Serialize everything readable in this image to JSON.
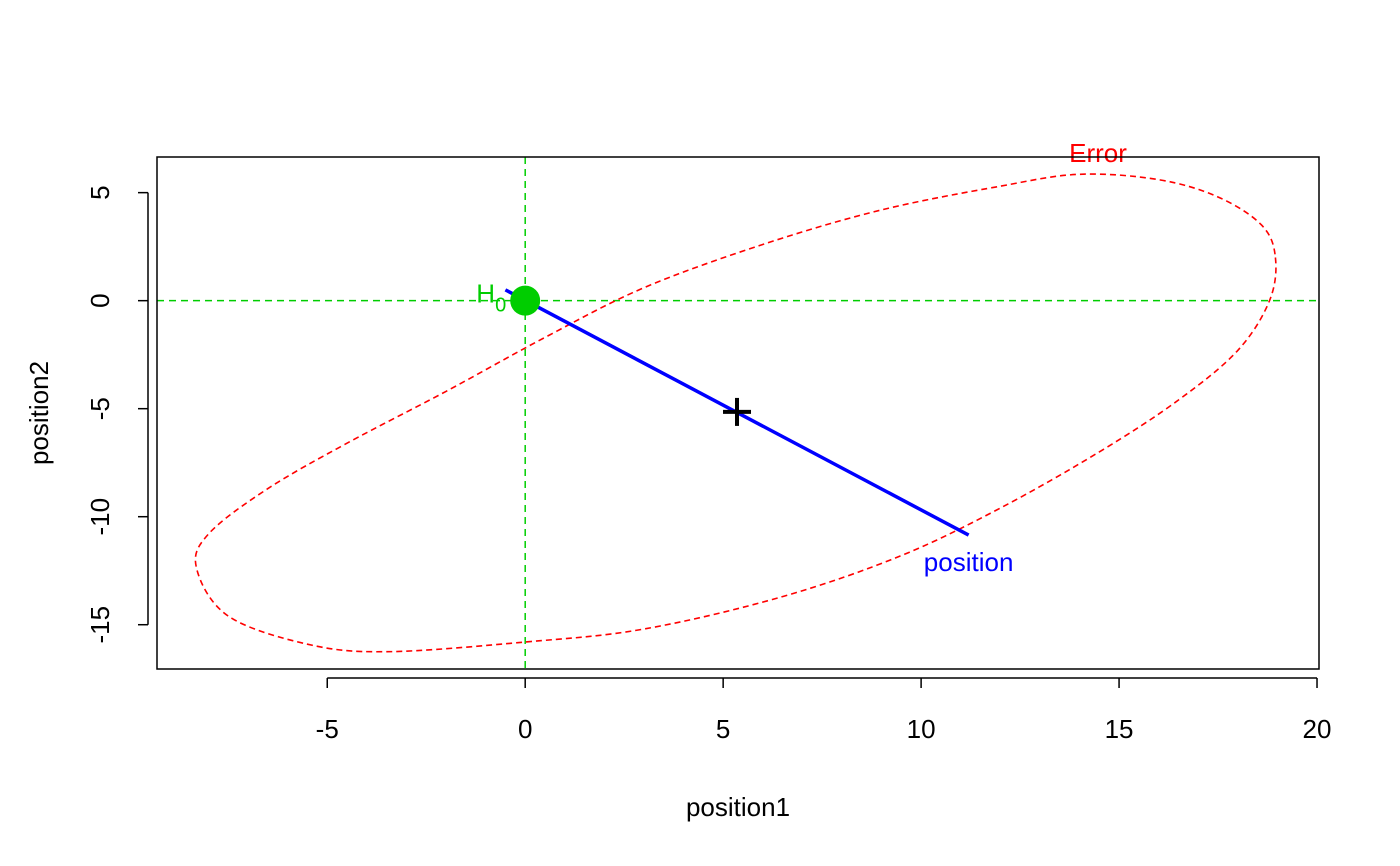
{
  "chart_data": {
    "type": "scatter",
    "xlabel": "position1",
    "ylabel": "position2",
    "xlim": [
      -9.3,
      20.05
    ],
    "ylim": [
      -17.05,
      6.65
    ],
    "x_ticks": [
      -5,
      0,
      5,
      10,
      15,
      20
    ],
    "y_ticks": [
      -15,
      -10,
      -5,
      0,
      5
    ],
    "x_tick_labels": [
      "-5",
      "0",
      "5",
      "10",
      "15",
      "20"
    ],
    "y_tick_labels": [
      "-15",
      "-10",
      "-5",
      "0",
      "5"
    ],
    "grid": false,
    "reference_lines": {
      "x": 0,
      "y": 0,
      "color": "#00CD00",
      "style": "dashed"
    },
    "hypothesis_point": {
      "label": "H",
      "subscript": "0",
      "x": 0,
      "y": 0,
      "color": "#00CD00"
    },
    "center_point": {
      "x": 5.35,
      "y": -5.15,
      "marker": "+",
      "color": "#000000"
    },
    "hypothesis_line": {
      "label": "position",
      "color": "#0000FF",
      "from": [
        -0.5,
        0.5
      ],
      "to": [
        11.2,
        -10.85
      ]
    },
    "error_ellipse": {
      "label": "Error",
      "color": "#FF0000",
      "style": "dashed",
      "center": [
        5.35,
        -5.2
      ],
      "points": [
        [
          18.95,
          2.0
        ],
        [
          18.8,
          0.0
        ],
        [
          18.0,
          -2.3
        ],
        [
          16.5,
          -4.6
        ],
        [
          14.5,
          -7.0
        ],
        [
          12.0,
          -9.6
        ],
        [
          9.5,
          -11.8
        ],
        [
          6.5,
          -13.7
        ],
        [
          3.0,
          -15.2
        ],
        [
          0.0,
          -15.8
        ],
        [
          -3.5,
          -16.25
        ],
        [
          -5.5,
          -15.9
        ],
        [
          -7.5,
          -14.6
        ],
        [
          -8.3,
          -12.4
        ],
        [
          -8.0,
          -10.8
        ],
        [
          -6.5,
          -8.7
        ],
        [
          -4.5,
          -6.6
        ],
        [
          -2.0,
          -4.2
        ],
        [
          0.5,
          -1.7
        ],
        [
          3.0,
          0.6
        ],
        [
          6.0,
          2.6
        ],
        [
          9.0,
          4.2
        ],
        [
          12.0,
          5.3
        ],
        [
          14.0,
          5.85
        ],
        [
          16.0,
          5.6
        ],
        [
          17.5,
          4.8
        ],
        [
          18.6,
          3.5
        ],
        [
          18.95,
          2.0
        ]
      ]
    }
  }
}
